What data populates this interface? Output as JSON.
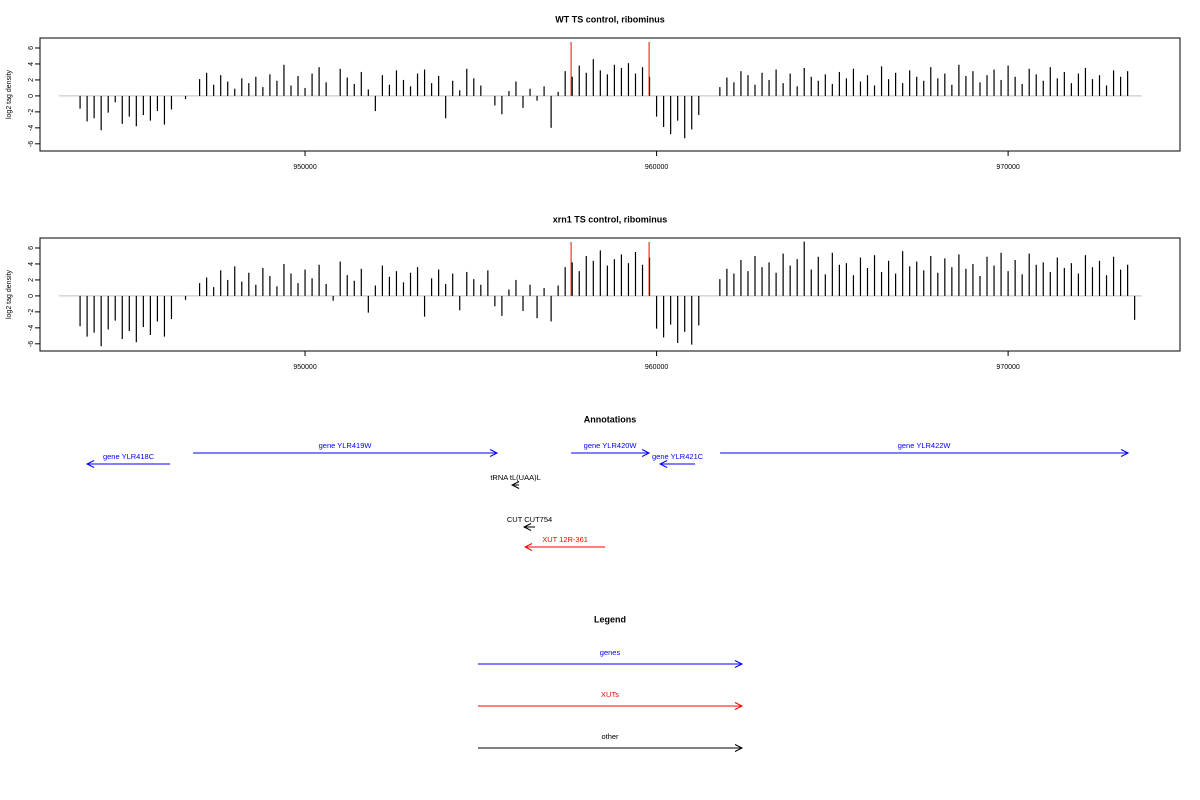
{
  "chart_data": [
    {
      "type": "bar",
      "title": "WT TS control, ribominus",
      "ylabel": "log2 tag density",
      "color": "#000000",
      "xlim": [
        942460,
        974890
      ],
      "ylim": [
        -6.9,
        7.25
      ],
      "xticks": [
        950000,
        960000,
        970000
      ],
      "yticks": [
        -6,
        -4,
        -2,
        0,
        2,
        4,
        6
      ],
      "highlights": {
        "color": "#ff0000",
        "x": [
          957568,
          959787
        ]
      },
      "x": [
        943000,
        943200,
        943400,
        943600,
        943800,
        944000,
        944200,
        944400,
        944600,
        944800,
        945000,
        945200,
        945400,
        945600,
        945800,
        946000,
        946200,
        946400,
        946600,
        946800,
        947000,
        947200,
        947400,
        947600,
        947800,
        948000,
        948200,
        948400,
        948600,
        948800,
        949000,
        949200,
        949400,
        949600,
        949800,
        950000,
        950200,
        950400,
        950600,
        950800,
        951000,
        951200,
        951400,
        951600,
        951800,
        952000,
        952200,
        952400,
        952600,
        952800,
        953000,
        953200,
        953400,
        953600,
        953800,
        954000,
        954200,
        954400,
        954600,
        954800,
        955000,
        955200,
        955400,
        955600,
        955800,
        956000,
        956200,
        956400,
        956600,
        956800,
        957000,
        957200,
        957400,
        957600,
        957800,
        958000,
        958200,
        958400,
        958600,
        958800,
        959000,
        959200,
        959400,
        959600,
        959800,
        960000,
        960200,
        960400,
        960600,
        960800,
        961000,
        961200,
        961400,
        961600,
        961800,
        962000,
        962200,
        962400,
        962600,
        962800,
        963000,
        963200,
        963400,
        963600,
        963800,
        964000,
        964200,
        964400,
        964600,
        964800,
        965000,
        965200,
        965400,
        965600,
        965800,
        966000,
        966200,
        966400,
        966600,
        966800,
        967000,
        967200,
        967400,
        967600,
        967800,
        968000,
        968200,
        968400,
        968600,
        968800,
        969000,
        969200,
        969400,
        969600,
        969800,
        970000,
        970200,
        970400,
        970600,
        970800,
        971000,
        971200,
        971400,
        971600,
        971800,
        972000,
        972200,
        972400,
        972600,
        972800,
        973000,
        973200,
        973400,
        973600,
        973800
      ],
      "values": [
        0,
        0,
        0,
        -1.6,
        -3.2,
        -2.8,
        -4.3,
        -2.1,
        -0.8,
        -3.5,
        -2.6,
        -3.8,
        -2.4,
        -3.1,
        -1.9,
        -3.6,
        -1.7,
        0,
        -0.4,
        0,
        2.1,
        2.9,
        1.4,
        2.6,
        1.8,
        0.9,
        2.2,
        1.6,
        2.4,
        1.1,
        2.7,
        1.9,
        3.9,
        1.3,
        2.5,
        1.0,
        2.8,
        3.6,
        1.7,
        0,
        3.4,
        2.3,
        1.5,
        3.0,
        0.8,
        -1.9,
        2.6,
        1.4,
        3.2,
        2.0,
        1.2,
        2.8,
        3.3,
        1.6,
        2.5,
        -2.8,
        1.9,
        0.7,
        3.4,
        2.2,
        1.3,
        0,
        -1.2,
        -2.3,
        0.6,
        1.8,
        -1.5,
        0.9,
        -0.6,
        1.2,
        -4.0,
        0.5,
        3.1,
        2.4,
        3.8,
        2.9,
        4.6,
        3.2,
        2.7,
        3.9,
        3.5,
        4.1,
        2.8,
        3.6,
        2.4,
        -2.6,
        -3.9,
        -4.8,
        -3.1,
        -5.3,
        -4.2,
        -2.4,
        0,
        0,
        1.1,
        2.3,
        1.7,
        3.1,
        2.6,
        1.4,
        2.9,
        2.0,
        3.3,
        1.6,
        2.8,
        1.2,
        3.5,
        2.4,
        1.9,
        2.7,
        1.5,
        3.0,
        2.2,
        3.4,
        1.8,
        2.6,
        1.3,
        3.7,
        2.1,
        2.9,
        1.6,
        3.2,
        2.4,
        1.9,
        3.6,
        2.2,
        2.8,
        1.4,
        3.9,
        2.5,
        3.1,
        1.7,
        2.6,
        3.3,
        2.0,
        3.8,
        2.4,
        1.5,
        3.4,
        2.7,
        1.9,
        3.6,
        2.2,
        3.0,
        1.6,
        2.8,
        3.5,
        2.1,
        2.6,
        1.3,
        3.2,
        2.4,
        3.1,
        0,
        0
      ]
    },
    {
      "type": "bar",
      "title": "xrn1 TS control, ribominus",
      "ylabel": "log2 tag density",
      "color": "#000000",
      "xlim": [
        942460,
        974890
      ],
      "ylim": [
        -6.9,
        7.25
      ],
      "xticks": [
        950000,
        960000,
        970000
      ],
      "yticks": [
        -6,
        -4,
        -2,
        0,
        2,
        4,
        6
      ],
      "highlights": {
        "color": "#ff0000",
        "x": [
          957568,
          959787
        ]
      },
      "x": [
        943000,
        943200,
        943400,
        943600,
        943800,
        944000,
        944200,
        944400,
        944600,
        944800,
        945000,
        945200,
        945400,
        945600,
        945800,
        946000,
        946200,
        946400,
        946600,
        946800,
        947000,
        947200,
        947400,
        947600,
        947800,
        948000,
        948200,
        948400,
        948600,
        948800,
        949000,
        949200,
        949400,
        949600,
        949800,
        950000,
        950200,
        950400,
        950600,
        950800,
        951000,
        951200,
        951400,
        951600,
        951800,
        952000,
        952200,
        952400,
        952600,
        952800,
        953000,
        953200,
        953400,
        953600,
        953800,
        954000,
        954200,
        954400,
        954600,
        954800,
        955000,
        955200,
        955400,
        955600,
        955800,
        956000,
        956200,
        956400,
        956600,
        956800,
        957000,
        957200,
        957400,
        957600,
        957800,
        958000,
        958200,
        958400,
        958600,
        958800,
        959000,
        959200,
        959400,
        959600,
        959800,
        960000,
        960200,
        960400,
        960600,
        960800,
        961000,
        961200,
        961400,
        961600,
        961800,
        962000,
        962200,
        962400,
        962600,
        962800,
        963000,
        963200,
        963400,
        963600,
        963800,
        964000,
        964200,
        964400,
        964600,
        964800,
        965000,
        965200,
        965400,
        965600,
        965800,
        966000,
        966200,
        966400,
        966600,
        966800,
        967000,
        967200,
        967400,
        967600,
        967800,
        968000,
        968200,
        968400,
        968600,
        968800,
        969000,
        969200,
        969400,
        969600,
        969800,
        970000,
        970200,
        970400,
        970600,
        970800,
        971000,
        971200,
        971400,
        971600,
        971800,
        972000,
        972200,
        972400,
        972600,
        972800,
        973000,
        973200,
        973400,
        973600,
        973800
      ],
      "values": [
        0,
        0,
        0,
        -3.8,
        -5.1,
        -4.6,
        -6.3,
        -4.2,
        -3.1,
        -5.4,
        -4.4,
        -5.8,
        -3.9,
        -4.9,
        -3.2,
        -5.1,
        -2.9,
        0,
        -0.5,
        0,
        1.6,
        2.3,
        1.1,
        3.2,
        2.0,
        3.7,
        1.8,
        2.9,
        1.4,
        3.5,
        2.5,
        1.2,
        4.0,
        2.8,
        1.6,
        3.3,
        2.2,
        3.9,
        1.5,
        -0.6,
        4.3,
        2.6,
        1.9,
        3.4,
        -2.1,
        1.3,
        3.8,
        2.4,
        3.1,
        1.7,
        2.9,
        3.6,
        -2.6,
        2.2,
        3.3,
        1.5,
        2.8,
        -1.8,
        3.0,
        2.1,
        1.4,
        3.2,
        -1.3,
        -2.5,
        0.8,
        2.0,
        -1.9,
        1.4,
        -2.8,
        1.0,
        -3.2,
        1.3,
        3.6,
        4.2,
        3.1,
        5.0,
        4.4,
        5.7,
        3.8,
        4.6,
        5.2,
        4.1,
        5.5,
        3.9,
        4.8,
        -4.1,
        -5.2,
        -3.6,
        -5.9,
        -4.5,
        -6.1,
        -3.7,
        0,
        0,
        2.1,
        3.4,
        2.8,
        4.5,
        3.1,
        5.0,
        3.6,
        4.2,
        2.9,
        5.3,
        3.8,
        4.6,
        6.8,
        3.3,
        4.9,
        2.7,
        5.4,
        3.9,
        4.1,
        2.6,
        4.8,
        3.5,
        5.1,
        3.0,
        4.4,
        2.8,
        5.6,
        3.7,
        4.3,
        3.2,
        5.0,
        2.9,
        4.7,
        3.6,
        5.2,
        3.4,
        4.0,
        2.5,
        4.9,
        3.8,
        5.4,
        3.1,
        4.5,
        2.7,
        5.3,
        3.9,
        4.2,
        3.0,
        4.8,
        3.5,
        4.1,
        2.8,
        5.1,
        3.6,
        4.4,
        2.6,
        4.9,
        3.3,
        3.9,
        -3.0,
        0
      ]
    }
  ],
  "annotations": {
    "title": "Annotations",
    "xlim": [
      942460,
      974890
    ],
    "items": [
      {
        "label": "gene YLR418C",
        "start": 946159,
        "end": 943798,
        "color": "#0000ff"
      },
      {
        "label": "gene YLR419W",
        "start": 946814,
        "end": 955462,
        "color": "#0000ff"
      },
      {
        "label": "gene YLR420W",
        "start": 957568,
        "end": 959787,
        "color": "#0000ff"
      },
      {
        "label": "gene YLR421C",
        "start": 961095,
        "end": 960100,
        "color": "#0000ff"
      },
      {
        "label": "gene YLR422W",
        "start": 961807,
        "end": 973414,
        "color": "#0000ff"
      },
      {
        "label": "tRNA tL(UAA)L",
        "start": 956088,
        "end": 955889,
        "color": "#000000"
      },
      {
        "label": "CUT CUT754",
        "start": 956543,
        "end": 956230,
        "color": "#000000"
      },
      {
        "label": "XUT 12R-361",
        "start": 958535,
        "end": 956259,
        "color": "#ff0000"
      }
    ]
  },
  "legend": {
    "title": "Legend",
    "items": [
      {
        "name": "genes",
        "color": "#0000ff"
      },
      {
        "name": "XUTs",
        "color": "#ff0000"
      },
      {
        "name": "other",
        "color": "#000000"
      }
    ]
  }
}
